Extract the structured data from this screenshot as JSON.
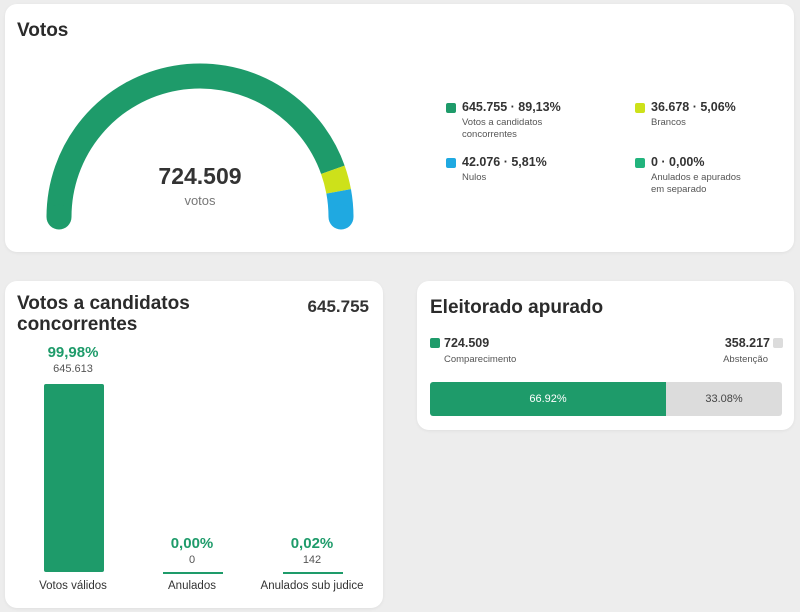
{
  "votos_card": {
    "title": "Votos",
    "total": "724.509",
    "unit": "votos",
    "gauge": [
      {
        "key": "validos",
        "fraction": 0.8913,
        "color": "#1e9b6a"
      },
      {
        "key": "brancos",
        "fraction": 0.0506,
        "color": "#cde11a"
      },
      {
        "key": "nulos",
        "fraction": 0.0581,
        "color": "#1fa9e1"
      }
    ],
    "legend": [
      {
        "value": "645.755 · 89,13%",
        "desc1": "Votos a candidatos",
        "desc2": "concorrentes",
        "color": "#1e9b6a"
      },
      {
        "value": "36.678 · 5,06%",
        "desc1": "Brancos",
        "desc2": "",
        "color": "#cde11a"
      },
      {
        "value": "42.076 · 5,81%",
        "desc1": "Nulos",
        "desc2": "",
        "color": "#1fa9e1"
      },
      {
        "value": "0 · 0,00%",
        "desc1": "Anulados e apurados",
        "desc2": "em separado",
        "color": "#22b47d"
      }
    ]
  },
  "candidatos_card": {
    "title_line1": "Votos a candidatos",
    "title_line2": "concorrentes",
    "total": "645.755",
    "bars": [
      {
        "pct": "99,98%",
        "count": "645.613",
        "label": "Votos válidos",
        "fraction": 0.9998
      },
      {
        "pct": "0,00%",
        "count": "0",
        "label": "Anulados",
        "fraction": 0.0
      },
      {
        "pct": "0,02%",
        "count": "142",
        "label": "Anulados sub judice",
        "fraction": 0.0002
      }
    ]
  },
  "eleitorado_card": {
    "title": "Eleitorado apurado",
    "comparecimento": {
      "value": "724.509",
      "label": "Comparecimento",
      "color": "#1e9b6a"
    },
    "abstencao": {
      "value": "358.217",
      "label": "Abstenção",
      "color": "#dcdcdc"
    },
    "bar": {
      "comparecimento_pct": "66.92%",
      "abstencao_pct": "33.08%",
      "comparecimento_fraction": 0.6692
    }
  },
  "colors": {
    "primary": "#1e9b6a",
    "bar_gray": "#dcdcdc",
    "background": "#ededed"
  }
}
